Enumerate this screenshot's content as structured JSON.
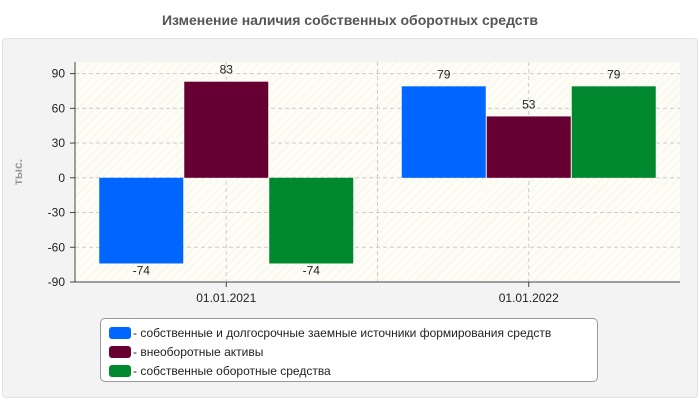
{
  "chart_data": {
    "type": "bar",
    "title": "Изменение наличия собственных оборотных средств",
    "ylabel": "тыс.",
    "xlabel": "",
    "ylim": [
      -90,
      100
    ],
    "yticks": [
      -90,
      -60,
      -30,
      0,
      30,
      60,
      90
    ],
    "grid": true,
    "legend_position": "bottom",
    "categories": [
      "01.01.2021",
      "01.01.2022"
    ],
    "series": [
      {
        "name": "- собственные и долгосрочные заемные источники формирования средств",
        "color": "#0066ff",
        "values": [
          -74,
          79
        ]
      },
      {
        "name": "- внеоборотные активы",
        "color": "#660033",
        "values": [
          83,
          53
        ]
      },
      {
        "name": "- собственные оборотные средства",
        "color": "#00882e",
        "values": [
          -74,
          79
        ]
      }
    ]
  }
}
